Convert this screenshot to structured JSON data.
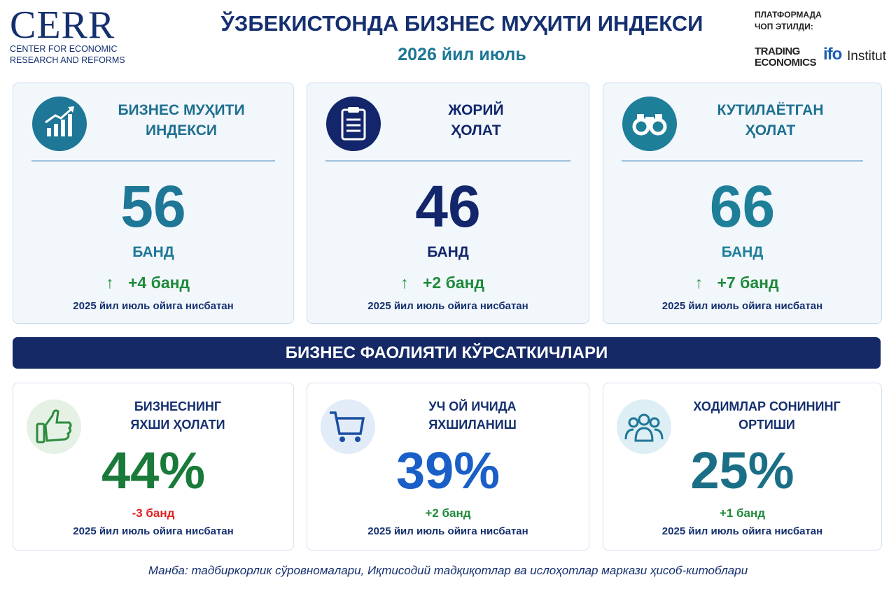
{
  "header": {
    "logo": "CERR",
    "logo_subtitle": [
      "CENTER FOR ECONOMIC",
      "RESEARCH AND REFORMS"
    ],
    "title": "ЎЗБЕКИСТОНДА БИЗНЕС МУҲИТИ ИНДЕКСИ",
    "subtitle": "2026 йил июль",
    "platform_label": [
      "ПЛАТФОРМАДА",
      "ЧОП ЭТИЛДИ:"
    ],
    "partners": {
      "trading": [
        "TRADING",
        "ECONOMICS"
      ],
      "ifo": [
        "ifo",
        "Institut"
      ]
    }
  },
  "index_cards": [
    {
      "title": [
        "БИЗНЕС МУҲИТИ",
        "ИНДЕКСИ"
      ],
      "value": "56",
      "unit": "БАНД",
      "arrow": "↑",
      "change": "+4 банд",
      "note": "2025 йил июль ойига нисбатан"
    },
    {
      "title": [
        "ЖОРИЙ",
        "ҲОЛАТ"
      ],
      "value": "46",
      "unit": "БАНД",
      "arrow": "↑",
      "change": "+2 банд",
      "note": "2025 йил июль ойига нисбатан"
    },
    {
      "title": [
        "КУТИЛАЁТГАН",
        "ҲОЛАТ"
      ],
      "value": "66",
      "unit": "БАНД",
      "arrow": "↑",
      "change": "+7 банд",
      "note": "2025 йил июль ойига нисбатан"
    }
  ],
  "section_title": "БИЗНЕС ФАОЛИЯТИ КЎРСАТКИЧЛАРИ",
  "indicator_cards": [
    {
      "title": [
        "БИЗНЕСНИНГ",
        "ЯХШИ ҲОЛАТИ"
      ],
      "value": "44%",
      "change": "-3 банд",
      "note": "2025 йил июль ойига нисбатан"
    },
    {
      "title": [
        "УЧ ОЙ ИЧИДА",
        "ЯХШИЛАНИШ"
      ],
      "value": "39%",
      "change": "+2 банд",
      "note": "2025 йил июль ойига нисбатан"
    },
    {
      "title": [
        "ХОДИМЛАР СОНИНИНГ",
        "ОРТИШИ"
      ],
      "value": "25%",
      "change": "+1 банд",
      "note": "2025 йил июль ойига нисбатан"
    }
  ],
  "source": "Манба: тадбиркорлик сўровномалари, Иқтисодий тадқиқотлар ва ислоҳотлар маркази ҳисоб-китоблари"
}
